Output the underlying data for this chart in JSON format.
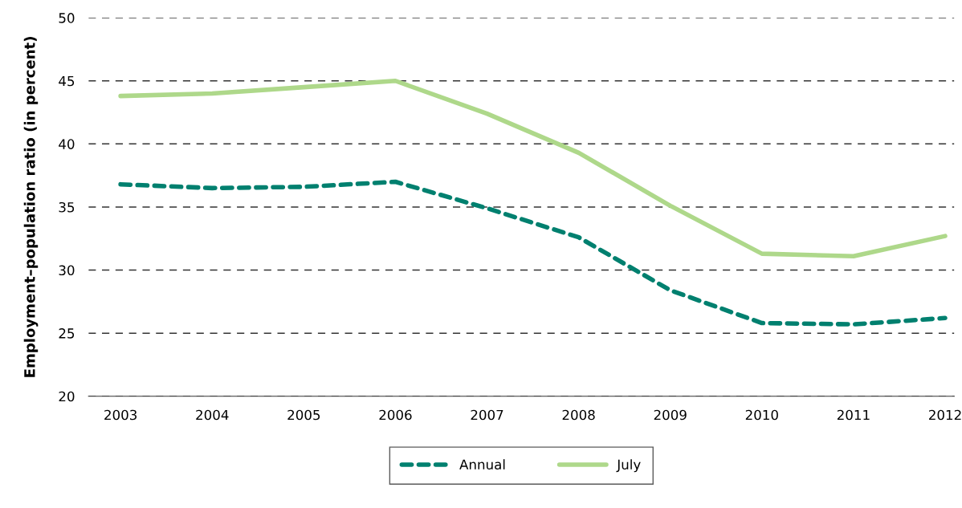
{
  "chart_data": {
    "type": "line",
    "ylabel": "Employment–population ratio (in percent)",
    "categories": [
      "2003",
      "2004",
      "2005",
      "2006",
      "2007",
      "2008",
      "2009",
      "2010",
      "2011",
      "2012"
    ],
    "series": [
      {
        "name": "Annual",
        "color": "#00806f",
        "line_style": "dashed",
        "values": [
          36.8,
          36.5,
          36.6,
          37.0,
          34.9,
          32.6,
          28.4,
          25.8,
          25.7,
          26.2
        ]
      },
      {
        "name": "July",
        "color": "#aed88a",
        "line_style": "solid",
        "values": [
          43.8,
          44.0,
          44.5,
          45.0,
          42.4,
          39.3,
          35.1,
          31.3,
          31.1,
          32.7
        ]
      }
    ],
    "ylim": [
      20,
      50
    ],
    "yticks": [
      20,
      25,
      30,
      35,
      40,
      45,
      50
    ],
    "grid": "y",
    "legend": "bottom",
    "marker": "none"
  }
}
